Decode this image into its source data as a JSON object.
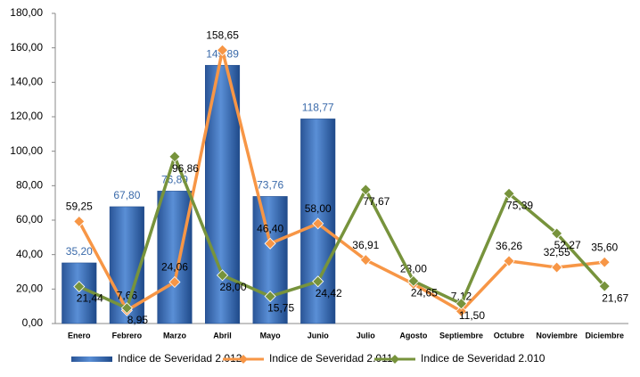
{
  "chart_data": {
    "type": "bar-line",
    "categories": [
      "Enero",
      "Febrero",
      "Marzo",
      "Abril",
      "Mayo",
      "Junio",
      "Julio",
      "Agosto",
      "Septiembre",
      "Octubre",
      "Noviembre",
      "Diciembre"
    ],
    "series": [
      {
        "name": "Indice de Severidad 2.012",
        "type": "bar",
        "color": "#4f81bd",
        "values": [
          35.2,
          67.8,
          76.89,
          149.89,
          73.76,
          118.77,
          null,
          null,
          null,
          null,
          null,
          null
        ],
        "value_labels": [
          "35,20",
          "67,80",
          "76,89",
          "149,89",
          "73,76",
          "118,77",
          null,
          null,
          null,
          null,
          null,
          null
        ]
      },
      {
        "name": "Indice de Severidad 2.011",
        "type": "line",
        "color": "#f79646",
        "values": [
          59.25,
          7.66,
          24.06,
          158.65,
          46.4,
          58.0,
          36.91,
          23.0,
          7.12,
          36.26,
          32.55,
          35.6
        ],
        "value_labels": [
          "59,25",
          "7,66",
          "24,06",
          "158,65",
          "46,40",
          "58,00",
          "36,91",
          "23,00",
          "7,12",
          "36,26",
          "32,55",
          "35,60"
        ]
      },
      {
        "name": "Indice de Severidad 2.010",
        "type": "line",
        "color": "#77933c",
        "values": [
          21.44,
          8.95,
          96.86,
          28.0,
          15.75,
          24.42,
          77.67,
          24.65,
          11.5,
          75.39,
          52.27,
          21.67
        ],
        "value_labels": [
          "21,44",
          "8,95",
          "96,86",
          "28,00",
          "15,75",
          "24,42",
          "77,67",
          "24,65",
          "11,50",
          "75,39",
          "52,27",
          "21,67"
        ]
      }
    ],
    "ylim": [
      0,
      180
    ],
    "yticks": [
      {
        "value": 0,
        "label": "0,00"
      },
      {
        "value": 20,
        "label": "20,00"
      },
      {
        "value": 40,
        "label": "40,00"
      },
      {
        "value": 60,
        "label": "60,00"
      },
      {
        "value": 80,
        "label": "80,00"
      },
      {
        "value": 100,
        "label": "100,00"
      },
      {
        "value": 120,
        "label": "120,00"
      },
      {
        "value": 140,
        "label": "140,00"
      },
      {
        "value": 160,
        "label": "160,00"
      },
      {
        "value": 180,
        "label": "180,00"
      }
    ],
    "legend": "bottom"
  }
}
